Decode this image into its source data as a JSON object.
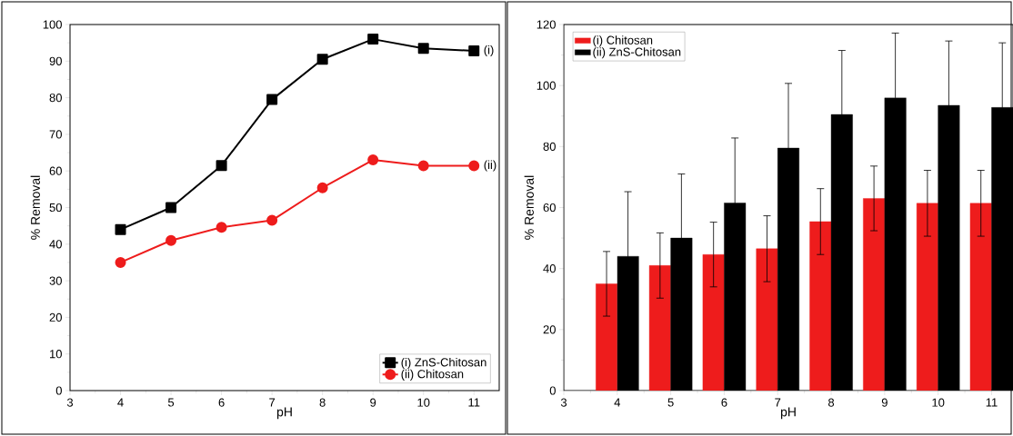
{
  "chart_data": [
    {
      "type": "line",
      "xlabel": "pH",
      "ylabel": "% Removal",
      "x": [
        4,
        5,
        6,
        7,
        8,
        9,
        10,
        11
      ],
      "series": [
        {
          "name": "(i) ZnS-Chitosan",
          "color": "#000000",
          "marker": "square",
          "values": [
            44,
            50,
            61.5,
            79.5,
            90.5,
            96,
            93.5,
            92.8
          ]
        },
        {
          "name": "(ii) Chitosan",
          "color": "#ee1c1c",
          "marker": "circle",
          "values": [
            35,
            41,
            44.6,
            46.5,
            55.4,
            63,
            61.4,
            61.4
          ]
        }
      ],
      "xlim": [
        3,
        11.5
      ],
      "ylim": [
        0,
        100
      ],
      "xticks": [
        3,
        4,
        5,
        6,
        7,
        8,
        9,
        10,
        11
      ],
      "yticks": [
        0,
        10,
        20,
        30,
        40,
        50,
        60,
        70,
        80,
        90,
        100
      ],
      "legend": "bottom right",
      "grid": false,
      "line_style": "solid",
      "annotations": [
        {
          "text": "(i)",
          "x": 11,
          "y": 92.8
        },
        {
          "text": "(ii)",
          "x": 11,
          "y": 61.4
        }
      ]
    },
    {
      "type": "bar",
      "xlabel": "pH",
      "ylabel": "% Removal",
      "x": [
        4,
        5,
        6,
        7,
        8,
        9,
        10,
        11
      ],
      "series": [
        {
          "name": "(i) Chitosan",
          "color": "#ee1c1c",
          "values": [
            35,
            41,
            44.6,
            46.5,
            55.4,
            63,
            61.4,
            61.4
          ],
          "errors": [
            10.6,
            10.7,
            10.6,
            10.8,
            10.8,
            10.6,
            10.8,
            10.8
          ]
        },
        {
          "name": "(ii) ZnS-Chitosan",
          "color": "#000000",
          "values": [
            44,
            50,
            61.5,
            79.5,
            90.5,
            96,
            93.5,
            92.8
          ],
          "errors": [
            21.2,
            21,
            21.3,
            21.2,
            21,
            21.2,
            21.1,
            21.2
          ]
        }
      ],
      "xlim": [
        3,
        11.4
      ],
      "ylim": [
        0,
        120
      ],
      "xticks": [
        3,
        4,
        5,
        6,
        7,
        8,
        9,
        10,
        11
      ],
      "yticks": [
        0,
        20,
        40,
        60,
        80,
        100,
        120
      ],
      "legend": "top left",
      "grid": false
    }
  ]
}
